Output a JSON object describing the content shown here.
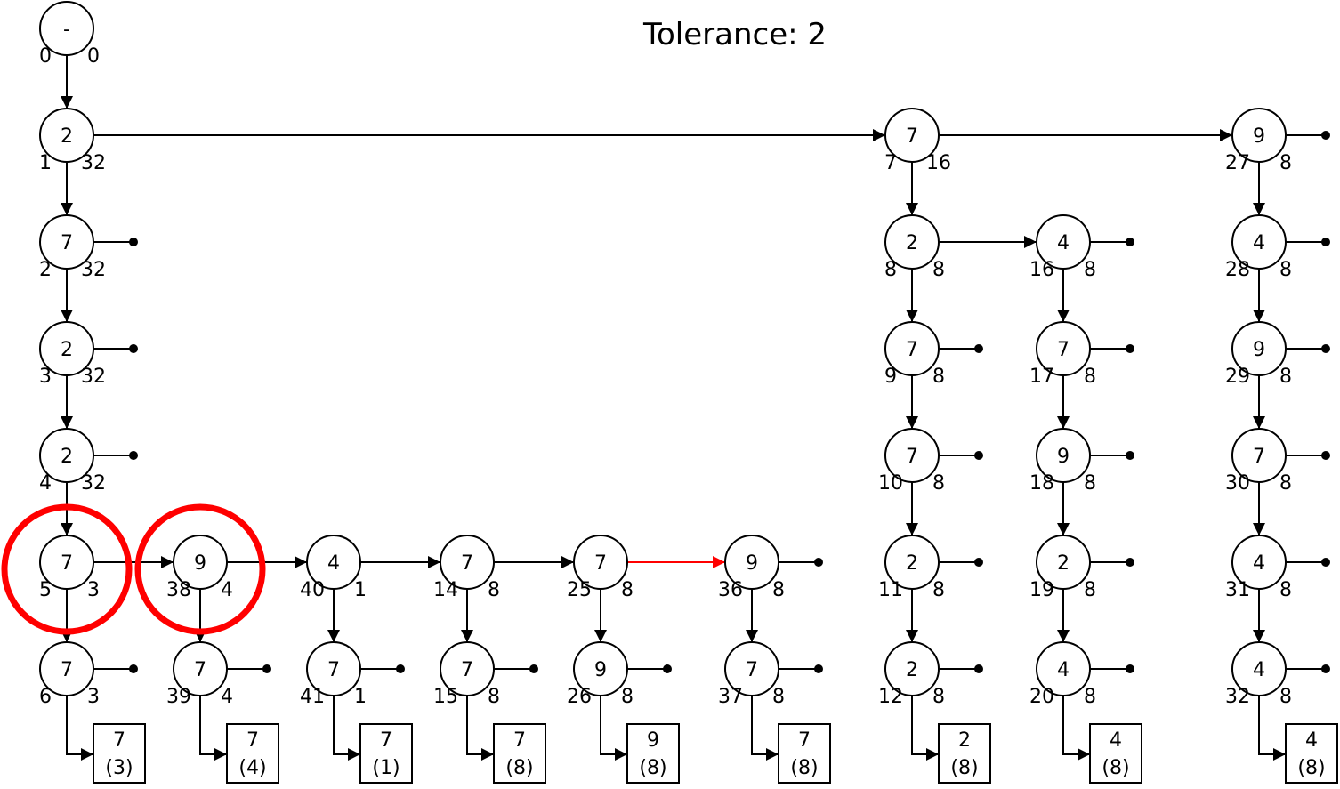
{
  "title": "Tolerance: 2",
  "colors": {
    "stroke": "#000000",
    "highlight": "#ff0000",
    "background": "#ffffff"
  },
  "nodes": [
    {
      "id": "root",
      "v": "-",
      "l": "0",
      "r": "0"
    },
    {
      "id": "n1",
      "v": "2",
      "l": "1",
      "r": "32"
    },
    {
      "id": "n2",
      "v": "7",
      "l": "2",
      "r": "32"
    },
    {
      "id": "n3",
      "v": "2",
      "l": "3",
      "r": "32"
    },
    {
      "id": "n4",
      "v": "2",
      "l": "4",
      "r": "32"
    },
    {
      "id": "n5",
      "v": "7",
      "l": "5",
      "r": "3"
    },
    {
      "id": "n6",
      "v": "7",
      "l": "6",
      "r": "3"
    },
    {
      "id": "n38",
      "v": "9",
      "l": "38",
      "r": "4"
    },
    {
      "id": "n39",
      "v": "7",
      "l": "39",
      "r": "4"
    },
    {
      "id": "n40",
      "v": "4",
      "l": "40",
      "r": "1"
    },
    {
      "id": "n41",
      "v": "7",
      "l": "41",
      "r": "1"
    },
    {
      "id": "n14",
      "v": "7",
      "l": "14",
      "r": "8"
    },
    {
      "id": "n15",
      "v": "7",
      "l": "15",
      "r": "8"
    },
    {
      "id": "n25",
      "v": "7",
      "l": "25",
      "r": "8"
    },
    {
      "id": "n26",
      "v": "9",
      "l": "26",
      "r": "8"
    },
    {
      "id": "n36",
      "v": "9",
      "l": "36",
      "r": "8"
    },
    {
      "id": "n37",
      "v": "7",
      "l": "37",
      "r": "8"
    },
    {
      "id": "n7",
      "v": "7",
      "l": "7",
      "r": "16"
    },
    {
      "id": "n8",
      "v": "2",
      "l": "8",
      "r": "8"
    },
    {
      "id": "n9",
      "v": "7",
      "l": "9",
      "r": "8"
    },
    {
      "id": "n10",
      "v": "7",
      "l": "10",
      "r": "8"
    },
    {
      "id": "n11",
      "v": "2",
      "l": "11",
      "r": "8"
    },
    {
      "id": "n12",
      "v": "2",
      "l": "12",
      "r": "8"
    },
    {
      "id": "n16",
      "v": "4",
      "l": "16",
      "r": "8"
    },
    {
      "id": "n17",
      "v": "7",
      "l": "17",
      "r": "8"
    },
    {
      "id": "n18",
      "v": "9",
      "l": "18",
      "r": "8"
    },
    {
      "id": "n19",
      "v": "2",
      "l": "19",
      "r": "8"
    },
    {
      "id": "n20",
      "v": "4",
      "l": "20",
      "r": "8"
    },
    {
      "id": "n27",
      "v": "9",
      "l": "27",
      "r": "8"
    },
    {
      "id": "n28",
      "v": "4",
      "l": "28",
      "r": "8"
    },
    {
      "id": "n29",
      "v": "9",
      "l": "29",
      "r": "8"
    },
    {
      "id": "n30",
      "v": "7",
      "l": "30",
      "r": "8"
    },
    {
      "id": "n31",
      "v": "4",
      "l": "31",
      "r": "8"
    },
    {
      "id": "n32",
      "v": "4",
      "l": "32",
      "r": "8"
    }
  ],
  "leaves": [
    {
      "id": "b1",
      "v": "7",
      "c": "(3)"
    },
    {
      "id": "b2",
      "v": "7",
      "c": "(4)"
    },
    {
      "id": "b3",
      "v": "7",
      "c": "(1)"
    },
    {
      "id": "b4",
      "v": "7",
      "c": "(8)"
    },
    {
      "id": "b5",
      "v": "9",
      "c": "(8)"
    },
    {
      "id": "b6",
      "v": "7",
      "c": "(8)"
    },
    {
      "id": "b7",
      "v": "2",
      "c": "(8)"
    },
    {
      "id": "b8",
      "v": "4",
      "c": "(8)"
    },
    {
      "id": "b9",
      "v": "4",
      "c": "(8)"
    }
  ],
  "edges": [
    [
      "root",
      "n1"
    ],
    [
      "n1",
      "n2"
    ],
    [
      "n2",
      "n3"
    ],
    [
      "n3",
      "n4"
    ],
    [
      "n4",
      "n5"
    ],
    [
      "n5",
      "n6"
    ],
    [
      "n5",
      "n38"
    ],
    [
      "n38",
      "n39"
    ],
    [
      "n38",
      "n40"
    ],
    [
      "n40",
      "n41"
    ],
    [
      "n40",
      "n14"
    ],
    [
      "n14",
      "n15"
    ],
    [
      "n14",
      "n25"
    ],
    [
      "n25",
      "n26"
    ],
    [
      "n25",
      "n36",
      "red"
    ],
    [
      "n36",
      "n37"
    ],
    [
      "n1",
      "n7"
    ],
    [
      "n7",
      "n8"
    ],
    [
      "n8",
      "n9"
    ],
    [
      "n9",
      "n10"
    ],
    [
      "n10",
      "n11"
    ],
    [
      "n11",
      "n12"
    ],
    [
      "n8",
      "n16"
    ],
    [
      "n16",
      "n17"
    ],
    [
      "n17",
      "n18"
    ],
    [
      "n18",
      "n19"
    ],
    [
      "n19",
      "n20"
    ],
    [
      "n7",
      "n27"
    ],
    [
      "n27",
      "n28"
    ],
    [
      "n28",
      "n29"
    ],
    [
      "n29",
      "n30"
    ],
    [
      "n30",
      "n31"
    ],
    [
      "n31",
      "n32"
    ]
  ],
  "leaf_links": [
    [
      "n6",
      "b1"
    ],
    [
      "n39",
      "b2"
    ],
    [
      "n41",
      "b3"
    ],
    [
      "n15",
      "b4"
    ],
    [
      "n26",
      "b5"
    ],
    [
      "n37",
      "b6"
    ],
    [
      "n12",
      "b7"
    ],
    [
      "n20",
      "b8"
    ],
    [
      "n32",
      "b9"
    ]
  ],
  "terminals": [
    "n2",
    "n3",
    "n4",
    "n6",
    "n39",
    "n41",
    "n15",
    "n26",
    "n36",
    "n37",
    "n9",
    "n10",
    "n11",
    "n12",
    "n16",
    "n17",
    "n18",
    "n19",
    "n20",
    "n27",
    "n28",
    "n29",
    "n30",
    "n31",
    "n32"
  ],
  "highlighted": [
    "n5",
    "n38"
  ]
}
